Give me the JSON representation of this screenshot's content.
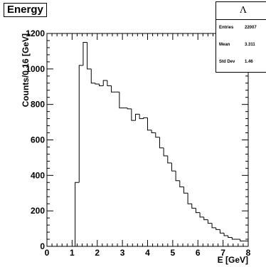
{
  "chart_data": {
    "type": "bar",
    "style": "step-histogram",
    "title": "Energy",
    "xlabel": "E [GeV]",
    "ylabel": "Counts/0.16 [GeV]",
    "xlim": [
      0,
      8
    ],
    "ylim": [
      0,
      1200
    ],
    "grid": false,
    "bin_width": 0.16,
    "bin_start": 0.0,
    "values": [
      0,
      0,
      0,
      0,
      0,
      0,
      0,
      360,
      1020,
      1150,
      1000,
      920,
      915,
      905,
      935,
      905,
      870,
      870,
      780,
      780,
      775,
      710,
      745,
      720,
      725,
      655,
      640,
      615,
      555,
      510,
      470,
      425,
      370,
      335,
      300,
      240,
      215,
      190,
      165,
      150,
      130,
      105,
      95,
      75,
      60,
      50,
      40,
      40,
      30,
      30
    ],
    "xticks": [
      "0",
      "1",
      "2",
      "3",
      "4",
      "5",
      "6",
      "7",
      "8"
    ],
    "yticks": [
      "0",
      "200",
      "400",
      "600",
      "800",
      "1000",
      "1200"
    ],
    "stats": {
      "title": "Λ",
      "rows": [
        {
          "label": "Entries",
          "value": "22007"
        },
        {
          "label": "Mean",
          "value": "3.311"
        },
        {
          "label": "Std Dev",
          "value": "1.46"
        }
      ]
    }
  }
}
